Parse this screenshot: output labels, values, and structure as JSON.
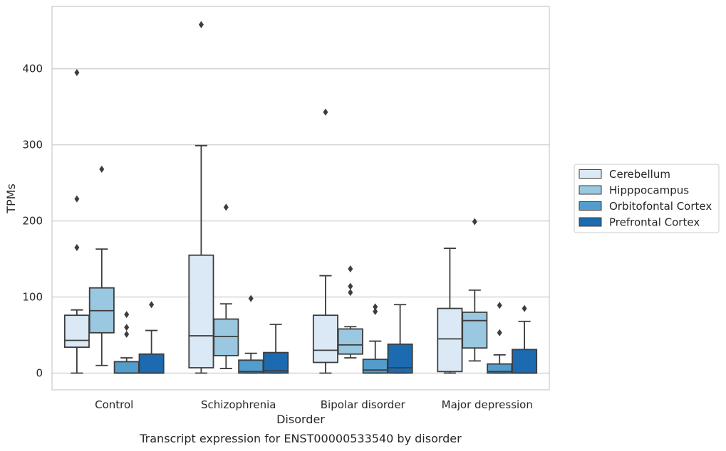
{
  "chart_data": {
    "type": "box",
    "xlabel": "Disorder",
    "ylabel": "TPMs",
    "caption": "Transcript expression for ENST00000533540 by disorder",
    "ylim": [
      -22,
      482
    ],
    "yticks": [
      0,
      100,
      200,
      300,
      400
    ],
    "grid": "horizontal",
    "legend_position": "right",
    "categories": [
      "Control",
      "Schizophrenia",
      "Bipolar disorder",
      "Major depression"
    ],
    "series": [
      {
        "name": "Cerebellum",
        "color": "#dbe9f6",
        "boxes": [
          {
            "whislo": 0,
            "q1": 34,
            "med": 43,
            "q3": 76,
            "whishi": 83,
            "fliers": [
              165,
              229,
              395
            ]
          },
          {
            "whislo": 0,
            "q1": 7,
            "med": 49,
            "q3": 155,
            "whishi": 299,
            "fliers": [
              458
            ]
          },
          {
            "whislo": 0,
            "q1": 14,
            "med": 30,
            "q3": 76,
            "whishi": 128,
            "fliers": [
              343
            ]
          },
          {
            "whislo": 0,
            "q1": 2,
            "med": 45,
            "q3": 85,
            "whishi": 164,
            "fliers": []
          }
        ]
      },
      {
        "name": "Hipppocampus",
        "color": "#9ac8e0",
        "boxes": [
          {
            "whislo": 10,
            "q1": 53,
            "med": 82,
            "q3": 112,
            "whishi": 163,
            "fliers": [
              268
            ]
          },
          {
            "whislo": 6,
            "q1": 23,
            "med": 48,
            "q3": 71,
            "whishi": 91,
            "fliers": [
              218
            ]
          },
          {
            "whislo": 20,
            "q1": 25,
            "med": 37,
            "q3": 58,
            "whishi": 61,
            "fliers": [
              106,
              114,
              137
            ]
          },
          {
            "whislo": 16,
            "q1": 33,
            "med": 69,
            "q3": 80,
            "whishi": 109,
            "fliers": [
              199
            ]
          }
        ]
      },
      {
        "name": "Orbitofontal Cortex",
        "color": "#529dcc",
        "boxes": [
          {
            "whislo": 0,
            "q1": 0,
            "med": 0,
            "q3": 15,
            "whishi": 20,
            "fliers": [
              51,
              60,
              77
            ]
          },
          {
            "whislo": 0,
            "q1": 0,
            "med": 2,
            "q3": 17,
            "whishi": 26,
            "fliers": [
              98
            ]
          },
          {
            "whislo": 0,
            "q1": 0,
            "med": 4,
            "q3": 18,
            "whishi": 42,
            "fliers": [
              81,
              87
            ]
          },
          {
            "whislo": 0,
            "q1": 0,
            "med": 2,
            "q3": 12,
            "whishi": 24,
            "fliers": [
              53,
              89
            ]
          }
        ]
      },
      {
        "name": "Prefrontal Cortex",
        "color": "#1c6aaf",
        "boxes": [
          {
            "whislo": 0,
            "q1": 0,
            "med": 0,
            "q3": 25,
            "whishi": 56,
            "fliers": [
              90
            ]
          },
          {
            "whislo": 0,
            "q1": 0,
            "med": 3,
            "q3": 27,
            "whishi": 64,
            "fliers": []
          },
          {
            "whislo": 0,
            "q1": 0,
            "med": 7,
            "q3": 38,
            "whishi": 90,
            "fliers": []
          },
          {
            "whislo": 0,
            "q1": 0,
            "med": 0,
            "q3": 31,
            "whishi": 68,
            "fliers": [
              85
            ]
          }
        ]
      }
    ]
  }
}
